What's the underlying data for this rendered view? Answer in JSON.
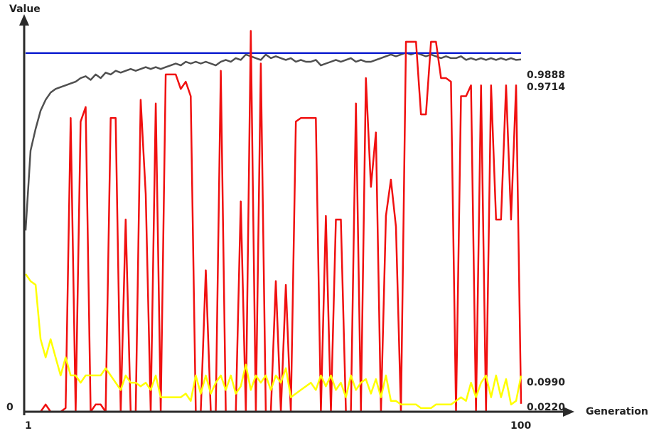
{
  "chart_data": {
    "type": "line",
    "title": "",
    "xlabel": "Generation",
    "ylabel": "Value",
    "xlim": [
      1,
      100
    ],
    "ylim": [
      0,
      1.1
    ],
    "grid": false,
    "x_tick_labels": [
      "1",
      "100"
    ],
    "y_tick_labels": [
      "0"
    ],
    "series": [
      {
        "color": "#1020d0",
        "end_label": "0.9888",
        "values": [
          0.9888,
          0.9888,
          0.9888,
          0.9888,
          0.9888,
          0.9888,
          0.9888,
          0.9888,
          0.9888,
          0.9888,
          0.9888,
          0.9888,
          0.9888,
          0.9888,
          0.9888,
          0.9888,
          0.9888,
          0.9888,
          0.9888,
          0.9888,
          0.9888,
          0.9888,
          0.9888,
          0.9888,
          0.9888,
          0.9888,
          0.9888,
          0.9888,
          0.9888,
          0.9888,
          0.9888,
          0.9888,
          0.9888,
          0.9888,
          0.9888,
          0.9888,
          0.9888,
          0.9888,
          0.9888,
          0.9888,
          0.9888,
          0.9888,
          0.9888,
          0.9888,
          0.9888,
          0.9888,
          0.9888,
          0.9888,
          0.9888,
          0.9888,
          0.9888,
          0.9888,
          0.9888,
          0.9888,
          0.9888,
          0.9888,
          0.9888,
          0.9888,
          0.9888,
          0.9888,
          0.9888,
          0.9888,
          0.9888,
          0.9888,
          0.9888,
          0.9888,
          0.9888,
          0.9888,
          0.9888,
          0.9888,
          0.9888,
          0.9888,
          0.9888,
          0.9888,
          0.9888,
          0.9888,
          0.9888,
          0.9888,
          0.9888,
          0.9888,
          0.9888,
          0.9888,
          0.9888,
          0.9888,
          0.9888,
          0.9888,
          0.9888,
          0.9888,
          0.9888,
          0.9888,
          0.9888,
          0.9888,
          0.9888,
          0.9888,
          0.9888,
          0.9888,
          0.9888,
          0.9888,
          0.9888,
          0.9888
        ]
      },
      {
        "color": "#505050",
        "end_label": "0.9714",
        "values": [
          0.5,
          0.72,
          0.78,
          0.83,
          0.86,
          0.88,
          0.89,
          0.895,
          0.9,
          0.905,
          0.91,
          0.92,
          0.925,
          0.915,
          0.93,
          0.92,
          0.935,
          0.93,
          0.94,
          0.935,
          0.94,
          0.945,
          0.94,
          0.945,
          0.95,
          0.945,
          0.95,
          0.945,
          0.95,
          0.955,
          0.96,
          0.955,
          0.965,
          0.96,
          0.965,
          0.96,
          0.965,
          0.96,
          0.955,
          0.965,
          0.97,
          0.965,
          0.975,
          0.97,
          0.985,
          0.98,
          0.975,
          0.97,
          0.985,
          0.975,
          0.98,
          0.975,
          0.97,
          0.975,
          0.965,
          0.97,
          0.965,
          0.965,
          0.97,
          0.955,
          0.96,
          0.965,
          0.97,
          0.965,
          0.97,
          0.975,
          0.965,
          0.97,
          0.965,
          0.965,
          0.97,
          0.975,
          0.98,
          0.985,
          0.98,
          0.985,
          0.99,
          0.985,
          0.99,
          0.985,
          0.98,
          0.985,
          0.98,
          0.975,
          0.98,
          0.975,
          0.975,
          0.98,
          0.97,
          0.975,
          0.97,
          0.975,
          0.97,
          0.975,
          0.97,
          0.975,
          0.97,
          0.975,
          0.97,
          0.9714
        ]
      },
      {
        "color": "#f01010",
        "end_label": "0.0220",
        "values": [
          0.0,
          0.0,
          0.0,
          0.0,
          0.02,
          0.0,
          0.0,
          0.0,
          0.01,
          0.81,
          0.0,
          0.8,
          0.84,
          0.0,
          0.02,
          0.02,
          0.0,
          0.81,
          0.81,
          0.0,
          0.53,
          0.0,
          0.0,
          0.86,
          0.6,
          0.0,
          0.85,
          0.0,
          0.93,
          0.93,
          0.93,
          0.89,
          0.91,
          0.87,
          0.0,
          0.0,
          0.39,
          0.0,
          0.0,
          0.94,
          0.0,
          0.0,
          0.0,
          0.58,
          0.0,
          1.05,
          0.0,
          0.96,
          0.0,
          0.0,
          0.36,
          0.0,
          0.35,
          0.0,
          0.8,
          0.81,
          0.81,
          0.81,
          0.81,
          0.0,
          0.54,
          0.0,
          0.53,
          0.53,
          0.0,
          0.0,
          0.85,
          0.0,
          0.92,
          0.62,
          0.77,
          0.0,
          0.54,
          0.64,
          0.51,
          0.0,
          1.02,
          1.02,
          1.02,
          0.82,
          0.82,
          1.02,
          1.02,
          0.92,
          0.92,
          0.91,
          0.0,
          0.87,
          0.87,
          0.9,
          0.0,
          0.9,
          0.0,
          0.9,
          0.53,
          0.53,
          0.9,
          0.53,
          0.9,
          0.022
        ]
      },
      {
        "color": "#ffff00",
        "end_label": "0.0990",
        "values": [
          0.38,
          0.36,
          0.35,
          0.2,
          0.15,
          0.2,
          0.15,
          0.1,
          0.15,
          0.1,
          0.1,
          0.08,
          0.1,
          0.1,
          0.1,
          0.1,
          0.12,
          0.1,
          0.08,
          0.06,
          0.1,
          0.08,
          0.08,
          0.07,
          0.08,
          0.06,
          0.1,
          0.04,
          0.04,
          0.04,
          0.04,
          0.04,
          0.05,
          0.03,
          0.1,
          0.05,
          0.1,
          0.05,
          0.08,
          0.1,
          0.06,
          0.1,
          0.05,
          0.07,
          0.13,
          0.06,
          0.1,
          0.08,
          0.1,
          0.06,
          0.1,
          0.08,
          0.12,
          0.04,
          0.05,
          0.06,
          0.07,
          0.08,
          0.06,
          0.1,
          0.07,
          0.1,
          0.06,
          0.08,
          0.04,
          0.1,
          0.06,
          0.08,
          0.09,
          0.05,
          0.09,
          0.04,
          0.1,
          0.03,
          0.03,
          0.02,
          0.02,
          0.02,
          0.02,
          0.01,
          0.01,
          0.01,
          0.02,
          0.02,
          0.02,
          0.02,
          0.03,
          0.04,
          0.03,
          0.08,
          0.04,
          0.08,
          0.1,
          0.04,
          0.1,
          0.04,
          0.09,
          0.02,
          0.03,
          0.099
        ]
      }
    ]
  }
}
